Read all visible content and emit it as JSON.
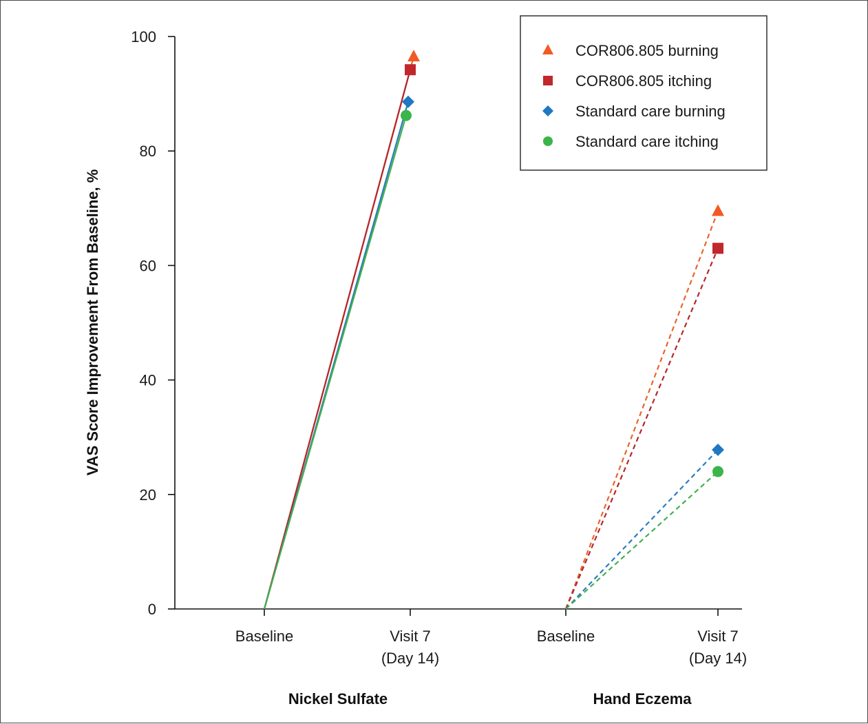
{
  "chart_data": {
    "type": "line",
    "ylabel": "VAS Score Improvement From Baseline, %",
    "ylim": [
      0,
      100
    ],
    "yticks": [
      "0",
      "20",
      "40",
      "60",
      "80",
      "100"
    ],
    "x_tick_labels": [
      {
        "line1": "Baseline",
        "line2": ""
      },
      {
        "line1": "Visit 7",
        "line2": "(Day 14)"
      },
      {
        "line1": "Baseline",
        "line2": ""
      },
      {
        "line1": "Visit 7",
        "line2": "(Day 14)"
      }
    ],
    "groups": [
      {
        "label": "Nickel Sulfate",
        "line_style": "solid",
        "categories": [
          "Baseline",
          "Visit 7 (Day 14)"
        ]
      },
      {
        "label": "Hand Eczema",
        "line_style": "dashed",
        "categories": [
          "Baseline",
          "Visit 7 (Day 14)"
        ]
      }
    ],
    "series": [
      {
        "name": "COR806.805 burning",
        "marker": "triangle",
        "color": "#f15a24",
        "line_color": "#e8642c",
        "values": {
          "Nickel Sulfate": [
            0,
            96.5
          ],
          "Hand Eczema": [
            0,
            69.5
          ]
        }
      },
      {
        "name": "COR806.805 itching",
        "marker": "square",
        "color": "#c1272d",
        "line_color": "#b3272d",
        "values": {
          "Nickel Sulfate": [
            0,
            94.2
          ],
          "Hand Eczema": [
            0,
            63.0
          ]
        }
      },
      {
        "name": "Standard care burning",
        "marker": "diamond",
        "color": "#1f78c1",
        "line_color": "#2a7bbf",
        "values": {
          "Nickel Sulfate": [
            0,
            88.6
          ],
          "Hand Eczema": [
            0,
            27.8
          ]
        }
      },
      {
        "name": "Standard care itching",
        "marker": "circle",
        "color": "#39b54a",
        "line_color": "#42b04e",
        "values": {
          "Nickel Sulfate": [
            0,
            86.2
          ],
          "Hand Eczema": [
            0,
            24.0
          ]
        }
      }
    ],
    "legend": {
      "position": "top-right"
    },
    "grid": false
  }
}
